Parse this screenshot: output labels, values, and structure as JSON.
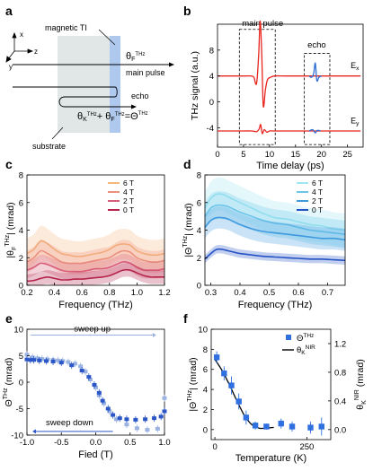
{
  "panel_letters": [
    "a",
    "b",
    "c",
    "d",
    "e",
    "f"
  ],
  "colors": {
    "red": "#e8251e",
    "blue": "#2f6fd2",
    "grey_substrate": "#e1e6e6",
    "ti_layer": "#aec8ee",
    "c_6T": "#f4b77c",
    "c_4T": "#ec8f7d",
    "c_2T": "#d85d77",
    "c_0T": "#b5234a",
    "d_6T": "#9fe7f0",
    "d_4T": "#6cc4ea",
    "d_2T": "#3f9ade",
    "d_0T": "#2452c4",
    "e_up": "#9ab3e2",
    "e_down": "#2b56c6",
    "f_marker": "#2f6fe0"
  },
  "panel_a": {
    "label_ti": "magnetic TI",
    "label_theta_f": "θ",
    "label_theta_f_sub": "F",
    "label_theta_f_sup": "THz",
    "label_main": "main pulse",
    "label_echo": "echo",
    "label_sum": "θ",
    "label_sum_k_sub": "K",
    "label_sum_k_sup": "THz",
    "label_sum_plus": "+ θ",
    "label_sum_f_sub": "F",
    "label_sum_f_sup": "THz",
    "label_sum_eq": "=Θ",
    "label_sum_theta_sup": "THz",
    "label_substrate": "substrate",
    "axis_x": "x",
    "axis_y": "y",
    "axis_z": "z"
  },
  "chart_data": [
    {
      "panel": "b",
      "type": "line",
      "xlabel": "Time delay (ps)",
      "ylabel": "THz signal (a.u.)",
      "xlim": [
        0,
        28
      ],
      "ylim": [
        -7,
        12
      ],
      "xticks": [
        0,
        5,
        10,
        15,
        20,
        25
      ],
      "yticks": [
        -4,
        0,
        4,
        8
      ],
      "box_main_label": "main pulse",
      "box_echo_label": "echo",
      "series": [
        {
          "name": "Ex",
          "color": "#e8251e",
          "offset": 4,
          "x": [
            0,
            2,
            4,
            5.5,
            6.5,
            7,
            7.5,
            7.9,
            8.2,
            8.5,
            8.8,
            9.2,
            9.6,
            10.2,
            11,
            13,
            16,
            18,
            19,
            20,
            21,
            22,
            24,
            26,
            27.5
          ],
          "y": [
            0,
            0,
            0,
            0,
            0,
            -0.2,
            -1.2,
            3,
            8.5,
            3.5,
            -4.6,
            -2.2,
            -0.6,
            -0.2,
            0,
            0,
            0,
            0,
            0,
            0,
            0,
            0,
            0,
            0,
            0
          ]
        },
        {
          "name": "Ex-echo",
          "color": "#2f6fd2",
          "x": [
            17.6,
            18.1,
            18.5,
            18.8,
            19.1,
            19.5,
            20.0
          ],
          "y": [
            4,
            3.8,
            4.4,
            6.0,
            3.3,
            3.8,
            4
          ]
        },
        {
          "name": "Ey",
          "color": "#e8251e",
          "offset": -4.5,
          "x": [
            0,
            4,
            6.5,
            7.5,
            8,
            8.3,
            8.6,
            9,
            9.5,
            10,
            11,
            14,
            17,
            27.5
          ],
          "y": [
            0,
            0,
            0,
            -0.1,
            0.3,
            1.0,
            -0.4,
            0.2,
            -0.2,
            0,
            0,
            0,
            0,
            0
          ]
        },
        {
          "name": "Ey-echo",
          "color": "#2f6fd2",
          "x": [
            17.6,
            18.3,
            18.8,
            19.2,
            19.8
          ],
          "y": [
            -4.5,
            -4.3,
            -4.8,
            -4.4,
            -4.5
          ]
        }
      ],
      "legend": [
        "E",
        "E"
      ],
      "legend_subs": [
        "x",
        "y"
      ]
    },
    {
      "panel": "c",
      "type": "line",
      "xlabel": "Frequency (THz)",
      "ylabel": "|θ",
      "ylabel_sub": "F",
      "ylabel_sup": "THz",
      "ylabel_tail": "| (mrad)",
      "xlim": [
        0.2,
        1.2
      ],
      "ylim": [
        0,
        8
      ],
      "xticks": [
        0.2,
        0.4,
        0.6,
        0.8,
        1.0,
        1.2
      ],
      "xtick_labels": [
        "0.2",
        "0.4",
        "0.6",
        "0.8",
        "1.0",
        "1.2"
      ],
      "yticks": [
        0,
        2,
        4,
        6,
        8
      ],
      "legend": [
        "6 T",
        "4 T",
        "2 T",
        "0 T"
      ],
      "x": [
        0.2,
        0.25,
        0.3,
        0.35,
        0.4,
        0.45,
        0.5,
        0.55,
        0.6,
        0.65,
        0.7,
        0.75,
        0.8,
        0.85,
        0.9,
        0.95,
        1.0,
        1.05,
        1.1,
        1.15,
        1.2
      ],
      "series": [
        {
          "name": "6 T",
          "values": [
            2.3,
            2.6,
            3.2,
            3.0,
            2.6,
            2.3,
            2.2,
            2.1,
            2.1,
            2.2,
            2.3,
            2.4,
            2.6,
            2.9,
            3.0,
            2.9,
            2.5,
            2.3,
            2.2,
            2.2,
            2.3
          ],
          "band": 1.1
        },
        {
          "name": "4 T",
          "values": [
            1.7,
            2.0,
            2.5,
            2.3,
            2.0,
            1.7,
            1.6,
            1.6,
            1.6,
            1.7,
            1.8,
            1.9,
            2.0,
            2.3,
            2.5,
            2.4,
            2.0,
            1.8,
            1.7,
            1.7,
            1.8
          ],
          "band": 0.8
        },
        {
          "name": "2 T",
          "values": [
            1.1,
            1.3,
            1.6,
            1.5,
            1.3,
            1.1,
            1.0,
            1.0,
            1.0,
            1.1,
            1.2,
            1.2,
            1.3,
            1.5,
            1.7,
            1.6,
            1.3,
            1.1,
            1.1,
            1.1,
            1.2
          ],
          "band": 0.6
        },
        {
          "name": "0 T",
          "values": [
            0.3,
            0.35,
            0.5,
            0.6,
            0.5,
            0.4,
            0.4,
            0.45,
            0.45,
            0.5,
            0.55,
            0.6,
            0.7,
            0.9,
            1.1,
            1.1,
            0.9,
            0.7,
            0.6,
            0.6,
            0.6
          ],
          "band": 0.5
        }
      ]
    },
    {
      "panel": "d",
      "type": "line",
      "xlabel": "Frequency (THz)",
      "ylabel": "|Θ",
      "ylabel_sup": "THz",
      "ylabel_tail": "| (mrad)",
      "xlim": [
        0.28,
        0.76
      ],
      "ylim": [
        0,
        8
      ],
      "xticks": [
        0.3,
        0.4,
        0.5,
        0.6,
        0.7
      ],
      "xtick_labels": [
        "0.3",
        "0.4",
        "0.5",
        "0.6",
        "0.7"
      ],
      "yticks": [
        0,
        2,
        4,
        6,
        8
      ],
      "legend": [
        "6 T",
        "4 T",
        "2 T",
        "0 T"
      ],
      "x": [
        0.28,
        0.3,
        0.32,
        0.34,
        0.36,
        0.38,
        0.4,
        0.44,
        0.48,
        0.52,
        0.56,
        0.6,
        0.64,
        0.68,
        0.72,
        0.76
      ],
      "series": [
        {
          "name": "6 T",
          "values": [
            5.6,
            6.3,
            6.6,
            6.6,
            6.4,
            6.2,
            6.0,
            5.6,
            5.2,
            4.9,
            4.8,
            4.6,
            4.4,
            4.3,
            4.1,
            4.0
          ],
          "band": 1.2
        },
        {
          "name": "4 T",
          "values": [
            5.0,
            5.6,
            5.8,
            5.8,
            5.7,
            5.5,
            5.3,
            5.0,
            4.7,
            4.5,
            4.4,
            4.2,
            4.0,
            3.9,
            3.8,
            3.7
          ],
          "band": 1.0
        },
        {
          "name": "2 T",
          "values": [
            4.2,
            4.7,
            4.9,
            4.9,
            4.8,
            4.6,
            4.4,
            4.1,
            3.9,
            3.8,
            3.7,
            3.6,
            3.5,
            3.4,
            3.4,
            3.3
          ],
          "band": 0.8
        },
        {
          "name": "0 T",
          "values": [
            1.9,
            2.3,
            2.6,
            2.6,
            2.5,
            2.4,
            2.3,
            2.2,
            2.1,
            2.05,
            2.0,
            1.95,
            1.9,
            1.9,
            1.85,
            1.8
          ],
          "band": 0.3
        }
      ]
    },
    {
      "panel": "e",
      "type": "scatter",
      "xlabel": "Fied (T)",
      "ylabel": "Θ",
      "ylabel_sup": "THz",
      "ylabel_tail": " (mrad)",
      "xlim": [
        -1.0,
        1.0
      ],
      "ylim": [
        -10,
        10
      ],
      "xticks": [
        -1.0,
        -0.5,
        0.0,
        0.5,
        1.0
      ],
      "xtick_labels": [
        "-1.0",
        "-0.5",
        "0.0",
        "0.5",
        "1.0"
      ],
      "yticks": [
        -10,
        -5,
        0,
        5,
        10
      ],
      "annotation_up": "sweep up",
      "annotation_down": "sweep down",
      "series": [
        {
          "name": "sweep up",
          "x": [
            -1.0,
            -0.92,
            -0.85,
            -0.78,
            -0.7,
            -0.62,
            -0.55,
            -0.48,
            -0.4,
            -0.3,
            -0.22,
            -0.15,
            -0.08,
            0.0,
            0.05,
            0.12,
            0.2,
            0.3,
            0.45,
            0.6,
            0.75,
            0.9,
            1.0
          ],
          "y": [
            5.2,
            4.7,
            4.5,
            4.4,
            4.3,
            4.2,
            4.1,
            4.0,
            3.8,
            3.5,
            3.0,
            2.0,
            0.5,
            -1.0,
            -2.5,
            -4.0,
            -5.5,
            -7.0,
            -8.0,
            -8.7,
            -9.0,
            -8.8,
            -3.0
          ]
        },
        {
          "name": "sweep down",
          "x": [
            1.0,
            0.95,
            0.85,
            0.72,
            0.58,
            0.45,
            0.35,
            0.25,
            0.18,
            0.1,
            0.05,
            -0.02,
            -0.1,
            -0.2,
            -0.35,
            -0.5,
            -0.62,
            -0.72,
            -0.82,
            -0.9,
            -0.95,
            -1.0
          ],
          "y": [
            -5.5,
            -6.5,
            -6.8,
            -7.0,
            -7.1,
            -7.0,
            -6.8,
            -6.2,
            -5.0,
            -3.5,
            -2.0,
            -0.5,
            1.0,
            2.2,
            3.2,
            3.7,
            3.9,
            4.0,
            4.1,
            4.2,
            4.2,
            4.3
          ]
        }
      ]
    },
    {
      "panel": "f",
      "type": "scatter",
      "xlabel": "Temperature (K)",
      "ylabel_left": "|Θ",
      "ylabel_left_sup": "THz",
      "ylabel_left_tail": "| (mrad)",
      "ylabel_right": "θ",
      "ylabel_right_sub": "K",
      "ylabel_right_sup": "NIR",
      "ylabel_right_tail": " (mrad)",
      "xlim": [
        -10,
        315
      ],
      "ylim_left": [
        -1,
        10
      ],
      "ylim_right": [
        -0.14,
        1.4
      ],
      "xticks": [
        0,
        250
      ],
      "yticks_left": [
        0,
        2,
        4,
        6,
        8,
        10
      ],
      "yticks_right": [
        0.0,
        0.4,
        0.8,
        1.2
      ],
      "yticks_right_labels": [
        "0.0",
        "0.4",
        "0.8",
        "1.2"
      ],
      "legend": [
        "Θ",
        "θ"
      ],
      "legend_sups": [
        "THz",
        "NIR"
      ],
      "legend_subs": [
        "",
        "K"
      ],
      "series": [
        {
          "name": "ΘTHz",
          "axis": "left",
          "x": [
            5,
            25,
            45,
            65,
            85,
            110,
            140,
            180,
            210,
            260,
            290
          ],
          "y": [
            7.2,
            5.6,
            4.4,
            2.8,
            1.2,
            0.4,
            0.3,
            0.6,
            0.3,
            0.2,
            0.3
          ],
          "err": [
            0.6,
            0.7,
            0.9,
            0.8,
            0.7,
            0.4,
            0.3,
            0.5,
            0.5,
            0.6,
            0.9
          ]
        },
        {
          "name": "θKNIR",
          "axis": "right",
          "x": [
            0,
            20,
            40,
            60,
            80,
            100,
            120,
            140,
            160
          ],
          "y": [
            0.98,
            0.82,
            0.62,
            0.4,
            0.2,
            0.07,
            0.02,
            0.02,
            0.03
          ]
        }
      ]
    }
  ]
}
